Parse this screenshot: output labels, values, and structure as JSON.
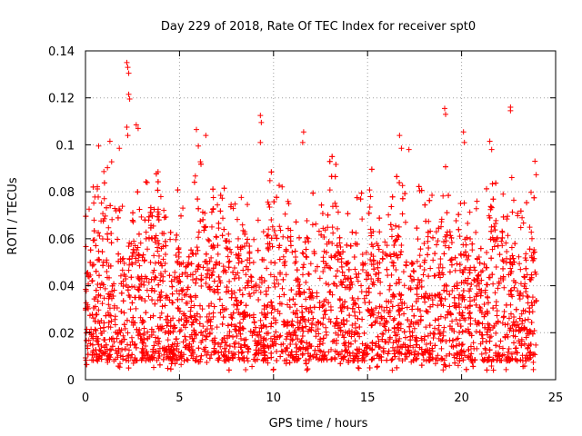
{
  "chart_data": {
    "type": "scatter",
    "title": "Day 229 of 2018, Rate Of TEC Index for receiver spt0",
    "xlabel": "GPS time / hours",
    "ylabel": "ROTI / TECUs",
    "xlim": [
      0,
      25
    ],
    "ylim": [
      0,
      0.14
    ],
    "xticks": [
      0,
      5,
      10,
      15,
      20,
      25
    ],
    "yticks": [
      0,
      0.02,
      0.04,
      0.06,
      0.08,
      0.1,
      0.12,
      0.14
    ],
    "xtick_labels": [
      "0",
      "5",
      "10",
      "15",
      "20",
      "25"
    ],
    "ytick_labels": [
      "0",
      "0.02",
      "0.04",
      "0.06",
      "0.08",
      "0.1",
      "0.12",
      "0.14"
    ],
    "grid": true,
    "marker": "+",
    "color": "#ff0000",
    "series": [
      {
        "name": "spt0",
        "x_range_hours": [
          0,
          24
        ],
        "description": "dense ROTI samples, roughly 0.005-0.09 TECU/min throughout the day",
        "outliers": [
          {
            "x": 0.7,
            "y": 0.0995
          },
          {
            "x": 1.3,
            "y": 0.1015
          },
          {
            "x": 1.8,
            "y": 0.0985
          },
          {
            "x": 2.2,
            "y": 0.135
          },
          {
            "x": 2.25,
            "y": 0.133
          },
          {
            "x": 2.3,
            "y": 0.1305
          },
          {
            "x": 2.3,
            "y": 0.1215
          },
          {
            "x": 2.35,
            "y": 0.1195
          },
          {
            "x": 2.2,
            "y": 0.1075
          },
          {
            "x": 2.7,
            "y": 0.1085
          },
          {
            "x": 2.8,
            "y": 0.107
          },
          {
            "x": 2.25,
            "y": 0.104
          },
          {
            "x": 5.9,
            "y": 0.1065
          },
          {
            "x": 6.0,
            "y": 0.0995
          },
          {
            "x": 6.4,
            "y": 0.104
          },
          {
            "x": 9.3,
            "y": 0.1125
          },
          {
            "x": 9.35,
            "y": 0.1095
          },
          {
            "x": 9.3,
            "y": 0.101
          },
          {
            "x": 11.6,
            "y": 0.1055
          },
          {
            "x": 11.55,
            "y": 0.101
          },
          {
            "x": 16.7,
            "y": 0.104
          },
          {
            "x": 16.8,
            "y": 0.0985
          },
          {
            "x": 17.2,
            "y": 0.098
          },
          {
            "x": 19.1,
            "y": 0.1155
          },
          {
            "x": 19.15,
            "y": 0.113
          },
          {
            "x": 20.1,
            "y": 0.1055
          },
          {
            "x": 20.15,
            "y": 0.101
          },
          {
            "x": 21.5,
            "y": 0.1015
          },
          {
            "x": 21.6,
            "y": 0.098
          },
          {
            "x": 22.6,
            "y": 0.116
          },
          {
            "x": 22.6,
            "y": 0.1145
          },
          {
            "x": 23.9,
            "y": 0.093
          }
        ]
      }
    ]
  }
}
